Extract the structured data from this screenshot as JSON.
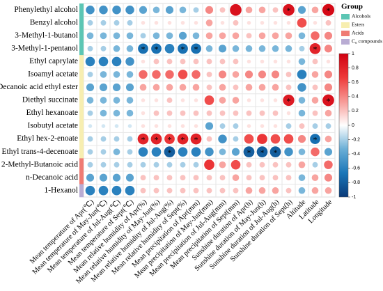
{
  "chart_data": {
    "type": "correlation-circles",
    "columns": [
      "Mean temperature of Apr(℃)",
      "Mean temperature of May-Jun(℃)",
      "Mean temperature of Jul-Aug(℃)",
      "Mean temperature of Sept(℃)",
      "Mean relative humidity of Apr(%)",
      "Mean relative humidity of May-Jun(%)",
      "Mean relative humidity of Jul-Aug(%)",
      "Mean relative humidity of Sept(%)",
      "Mean precipitation of Apr(mm)",
      "Mean precipitation of May-Jun(mm)",
      "Mean precipitation of Jul-Aug(mm)",
      "Mean precipitation of Sept(mm)",
      "Sunshine duration of Apr(h)",
      "Sunshine duration of May-Jun(h)",
      "Sunshine duration of Jul-Aug(h)",
      "Sunshine duration of Sept(h)",
      "Altitude",
      "Latitude",
      "Longitude"
    ],
    "series": [
      {
        "name": "Phenylethyl alcohol",
        "group": "Alcohols",
        "values": [
          -0.5,
          -0.5,
          -0.5,
          -0.5,
          -0.4,
          -0.3,
          -0.4,
          -0.3,
          -0.2,
          0.4,
          0.2,
          0.9,
          0.3,
          0.3,
          0.2,
          0.9,
          -0.4,
          0.3,
          0.95
        ]
      },
      {
        "name": "Benzyl alcohol",
        "group": "Alcohols",
        "values": [
          -0.2,
          -0.2,
          -0.2,
          -0.2,
          0.1,
          0.1,
          0.1,
          0.1,
          0.1,
          0.3,
          0.1,
          0.2,
          0.1,
          0.1,
          0.1,
          0.1,
          0.6,
          0.1,
          0.2
        ]
      },
      {
        "name": "3-Methyl-1-butanol",
        "group": "Alcohols",
        "values": [
          -0.3,
          -0.3,
          -0.3,
          -0.3,
          -0.2,
          -0.3,
          -0.3,
          -0.4,
          -0.3,
          0.3,
          0.3,
          0.3,
          0.2,
          0.3,
          0.3,
          0.3,
          -0.3,
          0.5,
          0.4
        ]
      },
      {
        "name": "3-Methyl-1-pentanol",
        "group": "Alcohols",
        "values": [
          -0.2,
          -0.2,
          -0.3,
          -0.3,
          -0.7,
          -0.7,
          -0.6,
          -0.7,
          -0.7,
          -0.3,
          -0.4,
          -0.3,
          -0.3,
          -0.3,
          -0.3,
          -0.3,
          -0.2,
          0.8,
          0.4
        ]
      },
      {
        "name": "Ethyl caprylate",
        "group": "Esters",
        "values": [
          -0.6,
          -0.6,
          -0.6,
          -0.5,
          0.1,
          0.2,
          0.2,
          0.2,
          0.2,
          0.2,
          0.2,
          0.2,
          0.1,
          0.1,
          0.1,
          0.1,
          -0.3,
          0.2,
          0.1
        ]
      },
      {
        "name": "Isoamyl acetate",
        "group": "Esters",
        "values": [
          -0.2,
          -0.3,
          -0.3,
          -0.3,
          0.5,
          0.5,
          0.5,
          0.6,
          0.5,
          0.2,
          0.4,
          0.3,
          0.4,
          0.4,
          0.4,
          0.2,
          -0.6,
          0.3,
          0.4
        ]
      },
      {
        "name": "Decanoic acid ethyl ester",
        "group": "Esters",
        "values": [
          -0.4,
          -0.4,
          -0.4,
          -0.4,
          0.3,
          0.3,
          0.3,
          0.3,
          0.3,
          0.2,
          0.3,
          0.2,
          0.3,
          0.3,
          0.3,
          0.2,
          -0.5,
          0.2,
          0.4
        ]
      },
      {
        "name": "Diethyl succinate",
        "group": "Esters",
        "values": [
          -0.3,
          -0.3,
          -0.3,
          -0.3,
          0.1,
          0.1,
          0.2,
          0.1,
          0.1,
          0.6,
          0.3,
          0.3,
          0.1,
          0.1,
          0.1,
          0.85,
          -0.3,
          0.3,
          0.9
        ]
      },
      {
        "name": "Ethyl hexanoate",
        "group": "Esters",
        "values": [
          -0.2,
          -0.3,
          -0.3,
          -0.3,
          0.1,
          0.2,
          0.2,
          0.2,
          0.2,
          0.2,
          0.2,
          0.2,
          0.2,
          0.2,
          0.2,
          0.1,
          -0.3,
          0.2,
          0.3
        ]
      },
      {
        "name": "Isobutyl acetate",
        "group": "Esters",
        "values": [
          -0.1,
          -0.1,
          -0.1,
          -0.1,
          0.1,
          0.1,
          0.1,
          0.1,
          0.1,
          -0.4,
          -0.2,
          -0.2,
          0.1,
          0.1,
          0.1,
          -0.2,
          0.2,
          -0.2,
          -0.2
        ]
      },
      {
        "name": "Ethyl hex-2-enoate",
        "group": "Esters",
        "values": [
          -0.2,
          -0.2,
          -0.2,
          -0.2,
          0.8,
          0.8,
          0.7,
          0.8,
          0.8,
          0.2,
          -0.5,
          -0.2,
          0.6,
          0.7,
          0.6,
          0.6,
          0.4,
          -0.7,
          0.3
        ]
      },
      {
        "name": "Ethyl trans-4-decenoate",
        "group": "Esters",
        "values": [
          -0.2,
          -0.2,
          -0.3,
          -0.2,
          -0.6,
          -0.6,
          -0.8,
          -0.6,
          -0.6,
          -0.5,
          -0.3,
          -0.4,
          -0.8,
          -0.8,
          -0.8,
          -0.5,
          -0.3,
          0.5,
          -0.4
        ]
      },
      {
        "name": "2-Methyl-Butanoic acid",
        "group": "Acids",
        "values": [
          -0.2,
          -0.2,
          -0.2,
          -0.2,
          -0.2,
          -0.2,
          -0.2,
          -0.2,
          -0.2,
          0.7,
          0.3,
          0.6,
          0.2,
          0.2,
          0.2,
          0.2,
          0.3,
          -0.2,
          0.5
        ]
      },
      {
        "name": "n-Decanoic acid",
        "group": "Acids",
        "values": [
          -0.4,
          -0.4,
          -0.4,
          -0.4,
          0.2,
          0.2,
          0.2,
          0.2,
          0.2,
          0.2,
          0.2,
          0.3,
          0.2,
          0.2,
          0.2,
          0.2,
          -0.3,
          0.3,
          0.4
        ]
      },
      {
        "name": "1-Hexanol",
        "group": "C₆ compounds",
        "values": [
          -0.6,
          -0.6,
          -0.6,
          -0.6,
          0.2,
          0.2,
          0.2,
          0.2,
          0.2,
          0.2,
          0.2,
          0.2,
          0.3,
          0.3,
          0.3,
          0.2,
          -0.3,
          0.3,
          0.3
        ]
      }
    ],
    "star_label": "*",
    "stars": [
      [
        0,
        15
      ],
      [
        0,
        18
      ],
      [
        3,
        4
      ],
      [
        3,
        5
      ],
      [
        3,
        7
      ],
      [
        3,
        8
      ],
      [
        3,
        17
      ],
      [
        7,
        15
      ],
      [
        7,
        18
      ],
      [
        10,
        4
      ],
      [
        10,
        5
      ],
      [
        10,
        6
      ],
      [
        10,
        7
      ],
      [
        10,
        8
      ],
      [
        10,
        17
      ],
      [
        11,
        6
      ],
      [
        11,
        12
      ],
      [
        11,
        13
      ],
      [
        11,
        14
      ]
    ],
    "legend_title": "Group",
    "groups": [
      {
        "name": "Alcohols",
        "color": "#5cc6b4"
      },
      {
        "name": "Esters",
        "color": "#f7eeb0"
      },
      {
        "name": "Acids",
        "color": "#ef7b73"
      },
      {
        "name": "C₆ compounds",
        "color": "#b9acd3"
      }
    ],
    "colors": [
      "#0a3a78",
      "#1a76b8",
      "#6aaed6",
      "#ffffff",
      "#f79a96",
      "#ee3a3a",
      "#d00010"
    ],
    "clim": [
      -1,
      1
    ],
    "cticks": [
      1,
      0.8,
      0.6,
      0.4,
      0.2,
      0,
      -0.2,
      -0.4,
      -0.6,
      -0.8,
      -1
    ]
  }
}
